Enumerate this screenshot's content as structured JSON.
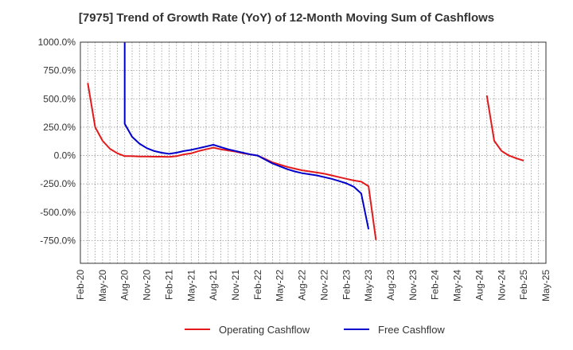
{
  "chart_data": {
    "type": "line",
    "title": "[7975]  Trend of Growth Rate (YoY) of 12-Month Moving Sum of Cashflows",
    "xlabel": "",
    "ylabel": "",
    "ylim": [
      -950,
      1000
    ],
    "y_ticks": [
      1000,
      750,
      500,
      250,
      0,
      -250,
      -500,
      -750
    ],
    "y_tick_labels": [
      "1000.0%",
      "750.0%",
      "500.0%",
      "250.0%",
      "0.0%",
      "-250.0%",
      "-500.0%",
      "-750.0%"
    ],
    "x_tick_labels": [
      "Feb-20",
      "May-20",
      "Aug-20",
      "Nov-20",
      "Feb-21",
      "May-21",
      "Aug-21",
      "Nov-21",
      "Feb-22",
      "May-22",
      "Aug-22",
      "Nov-22",
      "Feb-23",
      "May-23",
      "Aug-23",
      "Nov-23",
      "Feb-24",
      "May-24",
      "Aug-24",
      "Nov-24",
      "Feb-25",
      "May-25"
    ],
    "x_range": [
      "Feb-20",
      "May-25"
    ],
    "grid": true,
    "legend_position": "bottom",
    "series": [
      {
        "name": "Operating Cashflow",
        "color": "#e31a1c",
        "segments": [
          [
            [
              "Mar-20",
              640
            ],
            [
              "Apr-20",
              250
            ],
            [
              "May-20",
              130
            ],
            [
              "Jun-20",
              60
            ],
            [
              "Jul-20",
              20
            ],
            [
              "Aug-20",
              -5
            ],
            [
              "Sep-20",
              -5
            ],
            [
              "Oct-20",
              -8
            ],
            [
              "Nov-20",
              -8
            ],
            [
              "Dec-20",
              -10
            ],
            [
              "Jan-21",
              -10
            ],
            [
              "Feb-21",
              -12
            ],
            [
              "Mar-21",
              -5
            ],
            [
              "Apr-21",
              10
            ],
            [
              "May-21",
              20
            ],
            [
              "Jun-21",
              40
            ],
            [
              "Jul-21",
              55
            ],
            [
              "Aug-21",
              70
            ],
            [
              "Sep-21",
              55
            ],
            [
              "Oct-21",
              45
            ],
            [
              "Nov-21",
              35
            ],
            [
              "Dec-21",
              20
            ],
            [
              "Jan-22",
              10
            ],
            [
              "Feb-22",
              0
            ],
            [
              "Mar-22",
              -30
            ],
            [
              "Apr-22",
              -60
            ],
            [
              "May-22",
              -80
            ],
            [
              "Jun-22",
              -100
            ],
            [
              "Jul-22",
              -115
            ],
            [
              "Aug-22",
              -130
            ],
            [
              "Sep-22",
              -140
            ],
            [
              "Oct-22",
              -150
            ],
            [
              "Nov-22",
              -160
            ],
            [
              "Dec-22",
              -175
            ],
            [
              "Jan-23",
              -190
            ],
            [
              "Feb-23",
              -205
            ],
            [
              "Mar-23",
              -220
            ],
            [
              "Apr-23",
              -230
            ],
            [
              "May-23",
              -270
            ],
            [
              "Jun-23",
              -745
            ]
          ],
          [
            [
              "Sep-24",
              530
            ],
            [
              "Oct-24",
              130
            ],
            [
              "Nov-24",
              40
            ],
            [
              "Dec-24",
              0
            ],
            [
              "Jan-25",
              -25
            ],
            [
              "Feb-25",
              -45
            ]
          ]
        ]
      },
      {
        "name": "Free Cashflow",
        "color": "#0000cc",
        "segments": [
          [
            [
              "Aug-20",
              1000
            ],
            [
              "Aug-20",
              280
            ],
            [
              "Sep-20",
              165
            ],
            [
              "Oct-20",
              105
            ],
            [
              "Nov-20",
              65
            ],
            [
              "Dec-20",
              40
            ],
            [
              "Jan-21",
              25
            ],
            [
              "Feb-21",
              15
            ],
            [
              "Mar-21",
              25
            ],
            [
              "Apr-21",
              40
            ],
            [
              "May-21",
              50
            ],
            [
              "Jun-21",
              65
            ],
            [
              "Jul-21",
              80
            ],
            [
              "Aug-21",
              95
            ],
            [
              "Sep-21",
              75
            ],
            [
              "Oct-21",
              55
            ],
            [
              "Nov-21",
              40
            ],
            [
              "Dec-21",
              25
            ],
            [
              "Jan-22",
              10
            ],
            [
              "Feb-22",
              0
            ],
            [
              "Mar-22",
              -35
            ],
            [
              "Apr-22",
              -70
            ],
            [
              "May-22",
              -95
            ],
            [
              "Jun-22",
              -120
            ],
            [
              "Jul-22",
              -140
            ],
            [
              "Aug-22",
              -155
            ],
            [
              "Sep-22",
              -165
            ],
            [
              "Oct-22",
              -175
            ],
            [
              "Nov-22",
              -190
            ],
            [
              "Dec-22",
              -205
            ],
            [
              "Jan-23",
              -225
            ],
            [
              "Feb-23",
              -245
            ],
            [
              "Mar-23",
              -275
            ],
            [
              "Apr-23",
              -335
            ],
            [
              "May-23",
              -650
            ]
          ]
        ]
      }
    ]
  }
}
